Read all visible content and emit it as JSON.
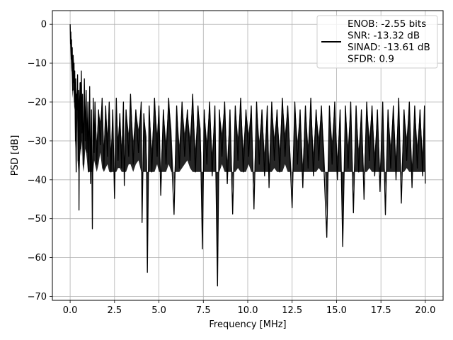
{
  "chart_data": {
    "type": "line",
    "title": "",
    "xlabel": "Frequency [MHz]",
    "ylabel": "PSD [dB]",
    "xlim": [
      -1.0,
      21.0
    ],
    "ylim": [
      -71.0,
      3.5
    ],
    "xticks": [
      0.0,
      2.5,
      5.0,
      7.5,
      10.0,
      12.5,
      15.0,
      17.5,
      20.0
    ],
    "xtick_labels": [
      "0.0",
      "2.5",
      "5.0",
      "7.5",
      "10.0",
      "12.5",
      "15.0",
      "17.5",
      "20.0"
    ],
    "yticks": [
      0,
      -10,
      -20,
      -30,
      -40,
      -50,
      -60,
      -70
    ],
    "ytick_labels": [
      "0",
      "−10",
      "−20",
      "−30",
      "−40",
      "−50",
      "−60",
      "−70"
    ],
    "grid": true,
    "legend_position": "top-right",
    "legend": [
      "ENOB: -2.55 bits",
      "SNR: -13.32 dB",
      "SINAD: -13.61 dB",
      "SFDR: 0.9"
    ],
    "series": [
      {
        "color": "#000000",
        "points": [
          [
            0.0,
            0.0
          ],
          [
            0.02,
            -5.0
          ],
          [
            0.04,
            -2.0
          ],
          [
            0.06,
            -9.0
          ],
          [
            0.08,
            -4.0
          ],
          [
            0.1,
            -12.0
          ],
          [
            0.12,
            -6.0
          ],
          [
            0.14,
            -17.0
          ],
          [
            0.17,
            -8.0
          ],
          [
            0.2,
            -15.0
          ],
          [
            0.22,
            -10.0
          ],
          [
            0.24,
            -20.0
          ],
          [
            0.26,
            -12.0
          ],
          [
            0.28,
            -21.0
          ],
          [
            0.3,
            -30.0
          ],
          [
            0.32,
            -14.0
          ],
          [
            0.34,
            -38.0
          ],
          [
            0.36,
            -18.0
          ],
          [
            0.4,
            -22.0
          ],
          [
            0.42,
            -13.0
          ],
          [
            0.45,
            -35.0
          ],
          [
            0.48,
            -17.0
          ],
          [
            0.5,
            -47.8
          ],
          [
            0.53,
            -20.0
          ],
          [
            0.57,
            -15.0
          ],
          [
            0.6,
            -32.0
          ],
          [
            0.63,
            -12.0
          ],
          [
            0.67,
            -28.0
          ],
          [
            0.7,
            -18.0
          ],
          [
            0.75,
            -36.0
          ],
          [
            0.8,
            -14.0
          ],
          [
            0.85,
            -30.0
          ],
          [
            0.9,
            -17.0
          ],
          [
            0.95,
            -33.0
          ],
          [
            1.0,
            -20.0
          ],
          [
            1.05,
            -38.0
          ],
          [
            1.1,
            -16.0
          ],
          [
            1.15,
            -41.0
          ],
          [
            1.2,
            -22.0
          ],
          [
            1.25,
            -52.6
          ],
          [
            1.3,
            -19.0
          ],
          [
            1.35,
            -33.0
          ],
          [
            1.4,
            -20.0
          ],
          [
            1.5,
            -36.0
          ],
          [
            1.6,
            -22.0
          ],
          [
            1.7,
            -31.0
          ],
          [
            1.8,
            -19.0
          ],
          [
            1.9,
            -37.0
          ],
          [
            2.0,
            -21.0
          ],
          [
            2.1,
            -34.0
          ],
          [
            2.2,
            -20.0
          ],
          [
            2.3,
            -38.0
          ],
          [
            2.4,
            -22.0
          ],
          [
            2.5,
            -44.8
          ],
          [
            2.6,
            -19.0
          ],
          [
            2.7,
            -35.0
          ],
          [
            2.8,
            -23.0
          ],
          [
            2.9,
            -37.0
          ],
          [
            3.0,
            -20.0
          ],
          [
            3.05,
            -41.5
          ],
          [
            3.15,
            -22.0
          ],
          [
            3.3,
            -34.0
          ],
          [
            3.4,
            -18.0
          ],
          [
            3.55,
            -36.0
          ],
          [
            3.7,
            -22.0
          ],
          [
            3.85,
            -33.0
          ],
          [
            4.0,
            -20.0
          ],
          [
            4.05,
            -51.0
          ],
          [
            4.15,
            -23.0
          ],
          [
            4.3,
            -35.0
          ],
          [
            4.35,
            -63.8
          ],
          [
            4.45,
            -21.0
          ],
          [
            4.6,
            -38.0
          ],
          [
            4.75,
            -19.0
          ],
          [
            4.9,
            -34.0
          ],
          [
            5.0,
            -21.0
          ],
          [
            5.1,
            -44.0
          ],
          [
            5.25,
            -22.0
          ],
          [
            5.4,
            -36.0
          ],
          [
            5.55,
            -19.0
          ],
          [
            5.7,
            -33.0
          ],
          [
            5.85,
            -48.9
          ],
          [
            6.0,
            -21.0
          ],
          [
            6.15,
            -37.0
          ],
          [
            6.3,
            -20.0
          ],
          [
            6.45,
            -34.0
          ],
          [
            6.6,
            -22.0
          ],
          [
            6.75,
            -35.0
          ],
          [
            6.9,
            -18.0
          ],
          [
            7.05,
            -38.0
          ],
          [
            7.2,
            -21.0
          ],
          [
            7.35,
            -33.0
          ],
          [
            7.45,
            -57.8
          ],
          [
            7.55,
            -22.0
          ],
          [
            7.7,
            -36.0
          ],
          [
            7.85,
            -20.0
          ],
          [
            8.0,
            -39.0
          ],
          [
            8.15,
            -21.0
          ],
          [
            8.3,
            -67.3
          ],
          [
            8.4,
            -22.0
          ],
          [
            8.55,
            -34.0
          ],
          [
            8.7,
            -20.0
          ],
          [
            8.85,
            -41.0
          ],
          [
            9.0,
            -22.0
          ],
          [
            9.15,
            -48.8
          ],
          [
            9.3,
            -21.0
          ],
          [
            9.45,
            -35.0
          ],
          [
            9.6,
            -19.0
          ],
          [
            9.75,
            -38.0
          ],
          [
            9.9,
            -22.0
          ],
          [
            10.05,
            -34.0
          ],
          [
            10.2,
            -21.0
          ],
          [
            10.35,
            -47.5
          ],
          [
            10.5,
            -20.0
          ],
          [
            10.65,
            -36.0
          ],
          [
            10.8,
            -22.0
          ],
          [
            10.95,
            -39.0
          ],
          [
            11.1,
            -21.0
          ],
          [
            11.2,
            -42.0
          ],
          [
            11.35,
            -20.0
          ],
          [
            11.5,
            -35.0
          ],
          [
            11.65,
            -22.0
          ],
          [
            11.8,
            -38.0
          ],
          [
            11.95,
            -19.0
          ],
          [
            12.1,
            -34.0
          ],
          [
            12.25,
            -21.0
          ],
          [
            12.5,
            -47.2
          ],
          [
            12.65,
            -20.0
          ],
          [
            12.8,
            -36.0
          ],
          [
            12.95,
            -22.0
          ],
          [
            13.1,
            -42.0
          ],
          [
            13.25,
            -21.0
          ],
          [
            13.4,
            -37.0
          ],
          [
            13.55,
            -19.0
          ],
          [
            13.7,
            -39.0
          ],
          [
            13.85,
            -22.0
          ],
          [
            14.0,
            -35.0
          ],
          [
            14.15,
            -21.0
          ],
          [
            14.3,
            -38.0
          ],
          [
            14.45,
            -54.8
          ],
          [
            14.6,
            -21.0
          ],
          [
            14.75,
            -36.0
          ],
          [
            14.9,
            -20.0
          ],
          [
            15.05,
            -40.0
          ],
          [
            15.2,
            -22.0
          ],
          [
            15.35,
            -57.2
          ],
          [
            15.5,
            -21.0
          ],
          [
            15.65,
            -37.0
          ],
          [
            15.8,
            -20.0
          ],
          [
            15.95,
            -48.5
          ],
          [
            16.1,
            -21.0
          ],
          [
            16.25,
            -38.0
          ],
          [
            16.4,
            -22.0
          ],
          [
            16.55,
            -45.0
          ],
          [
            16.7,
            -20.0
          ],
          [
            16.85,
            -35.0
          ],
          [
            17.0,
            -21.0
          ],
          [
            17.15,
            -39.0
          ],
          [
            17.3,
            -22.0
          ],
          [
            17.45,
            -43.0
          ],
          [
            17.6,
            -20.0
          ],
          [
            17.75,
            -49.0
          ],
          [
            17.9,
            -22.0
          ],
          [
            18.05,
            -37.0
          ],
          [
            18.2,
            -21.0
          ],
          [
            18.35,
            -40.0
          ],
          [
            18.5,
            -19.0
          ],
          [
            18.65,
            -46.0
          ],
          [
            18.8,
            -22.0
          ],
          [
            18.95,
            -35.0
          ],
          [
            19.1,
            -20.0
          ],
          [
            19.25,
            -42.0
          ],
          [
            19.4,
            -21.0
          ],
          [
            19.55,
            -37.0
          ],
          [
            19.7,
            -22.0
          ],
          [
            19.85,
            -39.0
          ],
          [
            19.95,
            -21.0
          ],
          [
            20.0,
            -41.0
          ]
        ]
      }
    ]
  }
}
